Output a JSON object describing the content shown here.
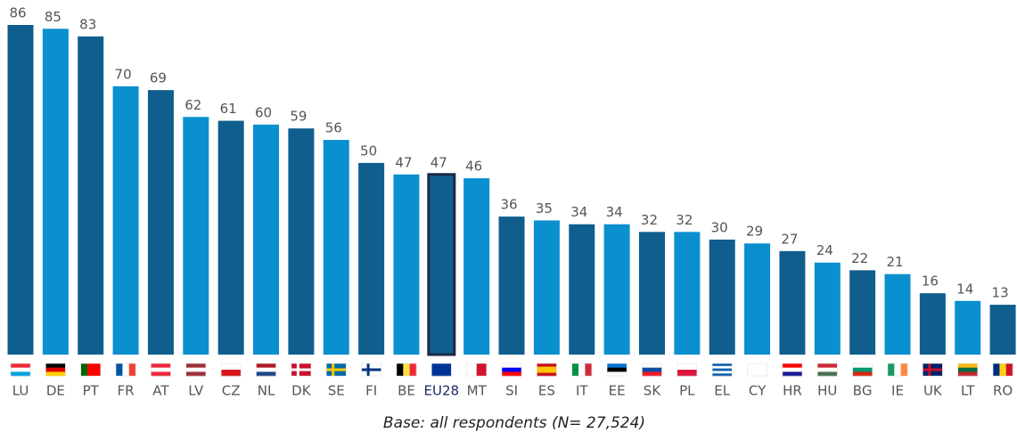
{
  "chart_data": {
    "type": "bar",
    "categories": [
      "LU",
      "DE",
      "PT",
      "FR",
      "AT",
      "LV",
      "CZ",
      "NL",
      "DK",
      "SE",
      "FI",
      "BE",
      "EU28",
      "MT",
      "SI",
      "ES",
      "IT",
      "EE",
      "SK",
      "PL",
      "EL",
      "CY",
      "HR",
      "HU",
      "BG",
      "IE",
      "UK",
      "LT",
      "RO"
    ],
    "values": [
      86,
      85,
      83,
      70,
      69,
      62,
      61,
      60,
      59,
      56,
      50,
      47,
      47,
      46,
      36,
      35,
      34,
      34,
      32,
      32,
      30,
      29,
      27,
      24,
      22,
      21,
      16,
      14,
      13
    ],
    "colors": [
      "#0f5e8e",
      "#0a8fcf",
      "#0f5e8e",
      "#0a8fcf",
      "#0f5e8e",
      "#0a8fcf",
      "#0f5e8e",
      "#0a8fcf",
      "#0f5e8e",
      "#0a8fcf",
      "#0f5e8e",
      "#0a8fcf",
      "#0f5e8e",
      "#0a8fcf",
      "#0f5e8e",
      "#0a8fcf",
      "#0f5e8e",
      "#0a8fcf",
      "#0f5e8e",
      "#0a8fcf",
      "#0f5e8e",
      "#0a8fcf",
      "#0f5e8e",
      "#0a8fcf",
      "#0f5e8e",
      "#0a8fcf",
      "#0f5e8e",
      "#0a8fcf",
      "#0f5e8e"
    ],
    "highlight": "EU28",
    "footnote": "Base: all respondents (N= 27,524)"
  }
}
